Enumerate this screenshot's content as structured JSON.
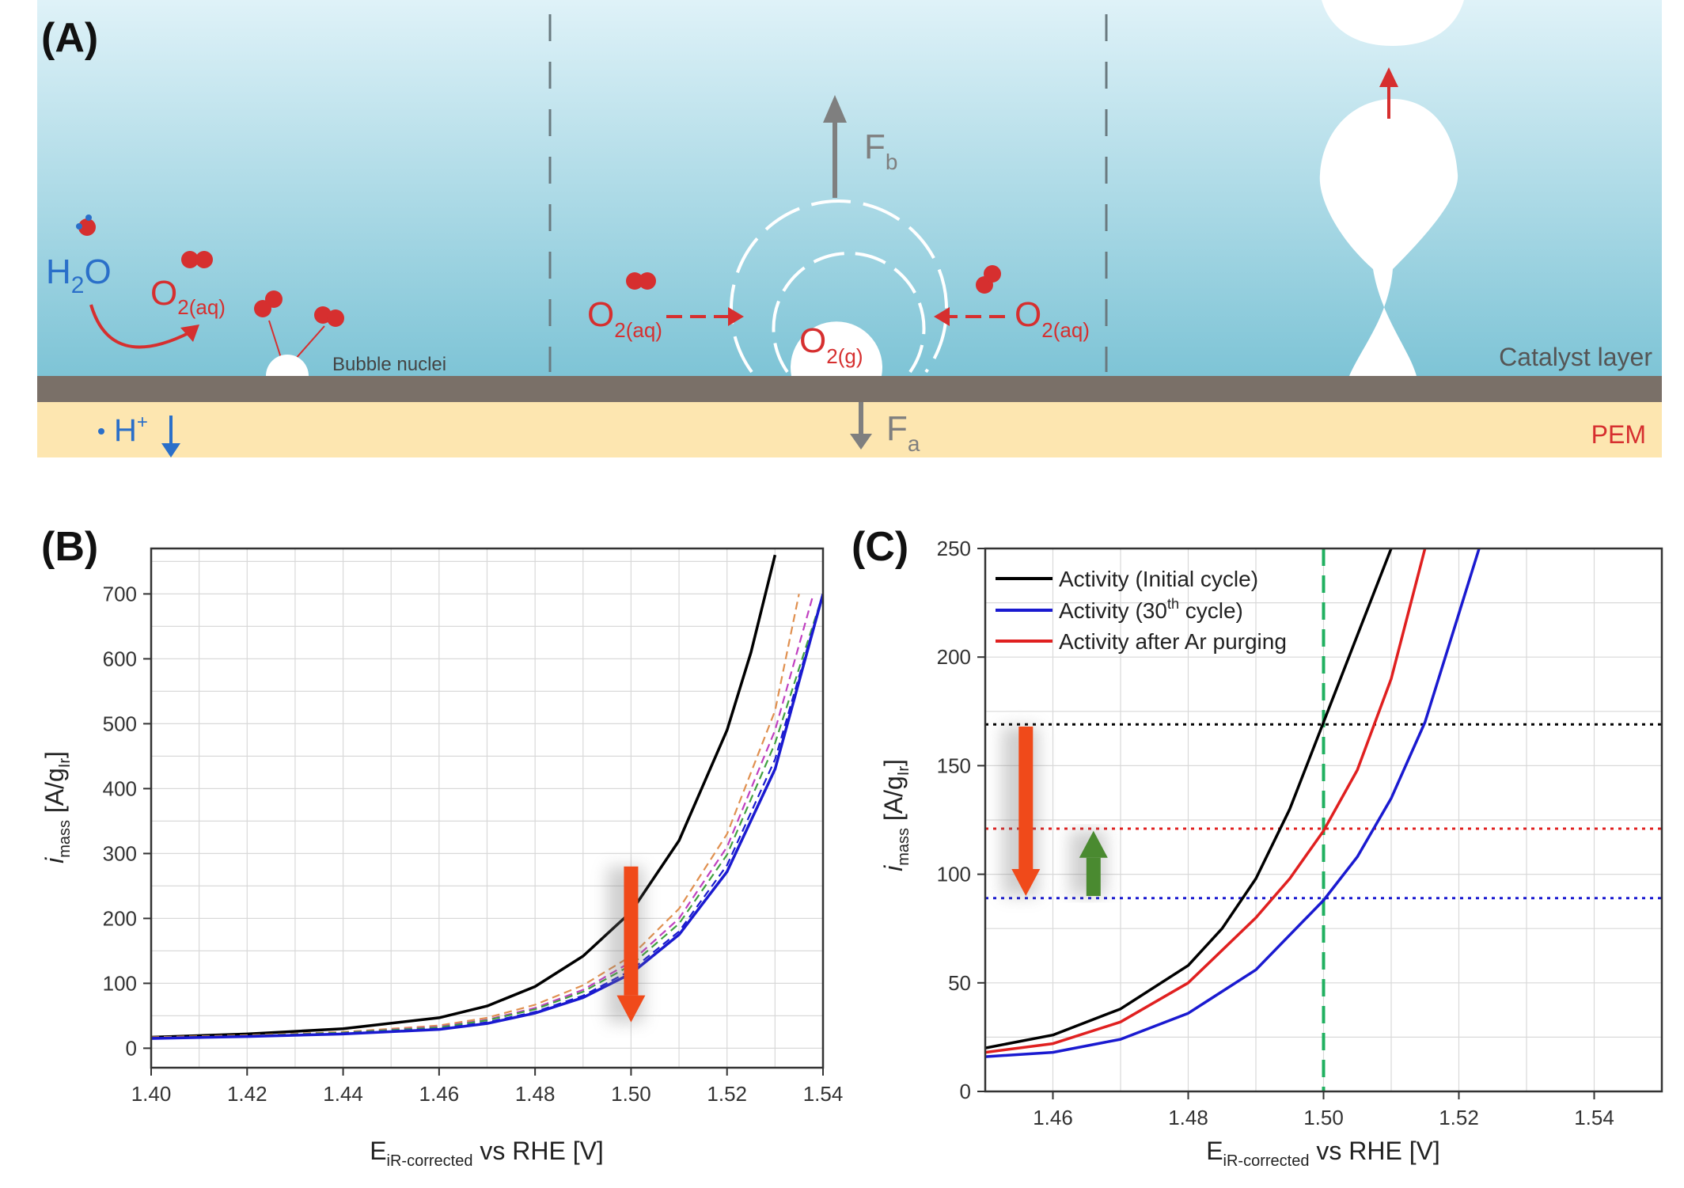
{
  "colors": {
    "water_top": "#dff2f8",
    "water_bottom": "#7ec4d6",
    "catalyst": "#7a7068",
    "pem": "#fde6b0",
    "oxygen": "#d62f2f",
    "proton": "#2a6fc9",
    "force_arrow": "#7f7f7f",
    "initial": "#000000",
    "cycle30": "#1a1ad0",
    "after_ar": "#e02020",
    "ref_line": "#20b060"
  },
  "panel_a": {
    "label": "(A)",
    "water": {
      "h": "H",
      "sub": "2",
      "o": "O"
    },
    "o2aq": {
      "main": "O",
      "sub": "2(aq)"
    },
    "o2g": {
      "main": "O",
      "sub": "2(g)"
    },
    "bubble_nuclei": "Bubble nuclei",
    "catalyst_layer": "Catalyst layer",
    "pem": "PEM",
    "proton": {
      "main": "H",
      "sup": "+"
    },
    "force_b": {
      "main": "F",
      "sub": "b"
    },
    "force_a": {
      "main": "F",
      "sub": "a"
    }
  },
  "chart_data": [
    {
      "panel": "(B)",
      "type": "line",
      "xlabel": {
        "main": "E",
        "sub": "iR-corrected",
        "rest": " vs RHE [V]"
      },
      "ylabel": {
        "main": "i",
        "sub": "mass",
        "rest": " [A/g",
        "sub2": "Ir",
        "end": "]"
      },
      "xlim": [
        1.4,
        1.54
      ],
      "ylim": [
        -30,
        770
      ],
      "xticks": [
        "1.40",
        "1.42",
        "1.44",
        "1.46",
        "1.48",
        "1.50",
        "1.52",
        "1.54"
      ],
      "yticks": [
        "0",
        "100",
        "200",
        "300",
        "400",
        "500",
        "600",
        "700"
      ],
      "grid": true,
      "series": [
        {
          "style": "solid",
          "color": "#000000",
          "x": [
            1.4,
            1.42,
            1.44,
            1.46,
            1.47,
            1.48,
            1.49,
            1.5,
            1.51,
            1.52,
            1.525,
            1.53
          ],
          "y": [
            17,
            22,
            30,
            47,
            65,
            95,
            142,
            210,
            320,
            490,
            610,
            760
          ]
        },
        {
          "style": "dashed",
          "color": "#e09050",
          "x": [
            1.4,
            1.42,
            1.44,
            1.46,
            1.47,
            1.48,
            1.49,
            1.5,
            1.51,
            1.52,
            1.53,
            1.535
          ],
          "y": [
            17,
            20,
            25,
            35,
            47,
            67,
            97,
            142,
            215,
            330,
            520,
            700
          ]
        },
        {
          "style": "dashed",
          "color": "#c040c0",
          "x": [
            1.4,
            1.42,
            1.44,
            1.46,
            1.47,
            1.48,
            1.49,
            1.5,
            1.51,
            1.52,
            1.53,
            1.538
          ],
          "y": [
            16,
            19,
            24,
            33,
            44,
            62,
            90,
            133,
            200,
            310,
            490,
            700
          ]
        },
        {
          "style": "dashed",
          "color": "#40a040",
          "x": [
            1.4,
            1.42,
            1.44,
            1.46,
            1.47,
            1.48,
            1.49,
            1.5,
            1.51,
            1.52,
            1.53,
            1.54
          ],
          "y": [
            16,
            19,
            24,
            32,
            43,
            60,
            87,
            128,
            192,
            298,
            470,
            700
          ]
        },
        {
          "style": "dashed",
          "color": "#1a1ad0",
          "x": [
            1.4,
            1.42,
            1.44,
            1.46,
            1.47,
            1.48,
            1.49,
            1.5,
            1.51,
            1.52,
            1.53,
            1.54
          ],
          "y": [
            16,
            18,
            23,
            30,
            40,
            56,
            81,
            120,
            180,
            282,
            445,
            700
          ]
        },
        {
          "style": "solid",
          "color": "#1a1ad0",
          "x": [
            1.4,
            1.42,
            1.44,
            1.46,
            1.47,
            1.48,
            1.49,
            1.5,
            1.51,
            1.52,
            1.53,
            1.54
          ],
          "y": [
            15,
            18,
            22,
            29,
            38,
            54,
            78,
            115,
            175,
            272,
            430,
            700
          ]
        }
      ],
      "annotation_arrow": {
        "x": 1.5,
        "from": 280,
        "to": 40,
        "color": "#f04a1a"
      }
    },
    {
      "panel": "(C)",
      "type": "line",
      "xlabel": {
        "main": "E",
        "sub": "iR-corrected",
        "rest": " vs RHE [V]"
      },
      "ylabel": {
        "main": "i",
        "sub": "mass",
        "rest": " [A/g",
        "sub2": "Ir",
        "end": "]"
      },
      "xlim": [
        1.45,
        1.55
      ],
      "ylim": [
        0,
        250
      ],
      "xticks": [
        "1.46",
        "1.48",
        "1.50",
        "1.52",
        "1.54"
      ],
      "yticks": [
        "0",
        "50",
        "100",
        "150",
        "200",
        "250"
      ],
      "grid": true,
      "legend": [
        "Activity (Initial cycle)",
        "Activity (30",
        "Activity after Ar purging"
      ],
      "legend_sup": "th",
      "legend_rest": " cycle)",
      "legend_placement": "top-left",
      "series": [
        {
          "name_index": 0,
          "color": "#000000",
          "x": [
            1.45,
            1.46,
            1.47,
            1.48,
            1.485,
            1.49,
            1.495,
            1.5,
            1.505,
            1.51
          ],
          "y": [
            20,
            26,
            38,
            58,
            75,
            98,
            130,
            170,
            210,
            250
          ]
        },
        {
          "name_index": 1,
          "color": "#1a1ad0",
          "x": [
            1.45,
            1.46,
            1.47,
            1.48,
            1.49,
            1.5,
            1.505,
            1.51,
            1.515,
            1.52,
            1.523
          ],
          "y": [
            16,
            18,
            24,
            36,
            56,
            88,
            108,
            135,
            170,
            220,
            250
          ]
        },
        {
          "name_index": 2,
          "color": "#e02020",
          "x": [
            1.45,
            1.46,
            1.47,
            1.48,
            1.49,
            1.495,
            1.5,
            1.505,
            1.51,
            1.515
          ],
          "y": [
            18,
            22,
            32,
            50,
            80,
            98,
            120,
            148,
            190,
            250
          ]
        }
      ],
      "hlines": [
        {
          "y": 169,
          "color": "#000000"
        },
        {
          "y": 121,
          "color": "#e02020"
        },
        {
          "y": 89,
          "color": "#1a1ad0"
        }
      ],
      "vline": {
        "x": 1.5,
        "color": "#20b060"
      },
      "arrows": [
        {
          "x": 1.456,
          "from": 168,
          "to": 90,
          "color": "#f04a1a"
        },
        {
          "x": 1.466,
          "from": 90,
          "to": 120,
          "color": "#4a8a30"
        }
      ]
    }
  ]
}
